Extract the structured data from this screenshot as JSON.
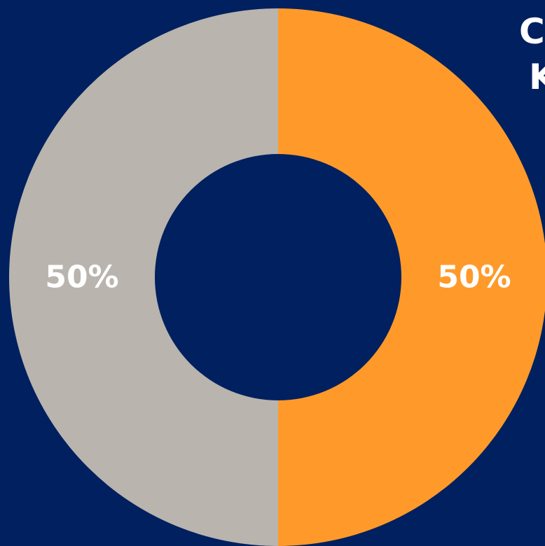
{
  "chart_data": {
    "type": "pie",
    "donut": true,
    "slices": [
      {
        "value": 50,
        "label": "50%",
        "color": "#ff9a2a"
      },
      {
        "value": 50,
        "label": "50%",
        "color": "#b9b4ad"
      }
    ]
  },
  "colors": {
    "background": "#00205f",
    "label_text": "#ffffff"
  },
  "cropped_text": {
    "line1": "C",
    "line2": "K"
  }
}
